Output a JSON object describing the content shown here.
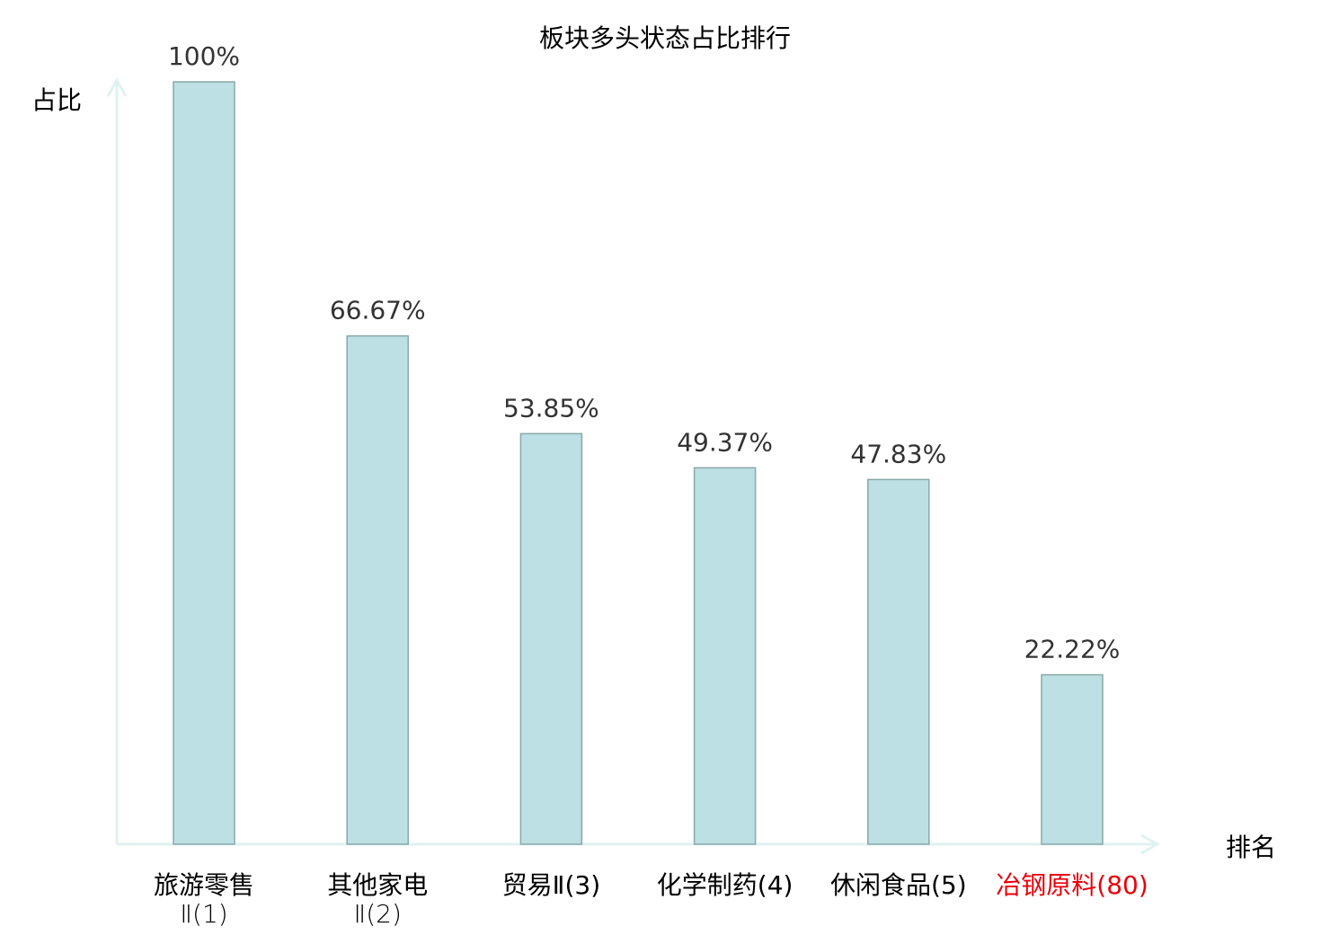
{
  "chart_data": {
    "type": "bar",
    "title": "板块多头状态占比排行",
    "xlabel": "排名",
    "ylabel": "占比",
    "ylim": [
      0,
      100
    ],
    "grid": false,
    "categories": [
      {
        "name": "旅游零售",
        "suffix": "Ⅱ(1)",
        "wrap": true
      },
      {
        "name": "其他家电",
        "suffix": "Ⅱ(2)",
        "wrap": true
      },
      {
        "name": "贸易Ⅱ",
        "suffix": "(3)",
        "wrap": false
      },
      {
        "name": "化学制药",
        "suffix": "(4)",
        "wrap": false
      },
      {
        "name": "休闲食品",
        "suffix": "(5)",
        "wrap": false
      },
      {
        "name": "冶钢原料",
        "suffix": "(80)",
        "wrap": false,
        "highlight": true
      }
    ],
    "values": [
      100,
      66.67,
      53.85,
      49.37,
      47.83,
      22.22
    ],
    "value_labels": [
      "100%",
      "66.67%",
      "53.85%",
      "49.37%",
      "47.83%",
      "22.22%"
    ],
    "colors": {
      "bar_fill": "#bce0e3",
      "bar_stroke": "#8aa8a8",
      "axis": "#dff2ef",
      "highlight": "#e8000b",
      "text": "#000000"
    }
  }
}
